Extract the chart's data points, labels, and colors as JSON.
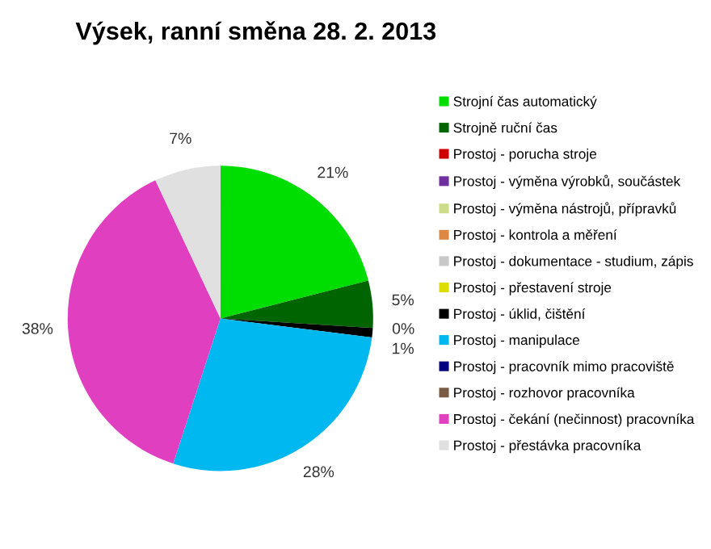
{
  "chart_data": {
    "type": "pie",
    "title": "Výsek, ranní směna 28. 2. 2013",
    "categories": [
      "Strojní čas automatický",
      "Strojně ruční čas",
      "Prostoj - porucha stroje",
      "Prostoj - výměna výrobků, součástek",
      "Prostoj - výměna nástrojů, přípravků",
      "Prostoj - kontrola a měření",
      "Prostoj - dokumentace - studium, zápis",
      "Prostoj - přestavení stroje",
      "Prostoj - úklid, čištění",
      "Prostoj - manipulace",
      "Prostoj - pracovník mimo pracoviště",
      "Prostoj - rozhovor pracovníka",
      "Prostoj - čekání (nečinnost) pracovníka",
      "Prostoj - přestávka pracovníka"
    ],
    "values": [
      21,
      5,
      0,
      0,
      0,
      0,
      0,
      0,
      1,
      28,
      0,
      0,
      38,
      7
    ],
    "value_labels": [
      "21%",
      "5%",
      "0%",
      null,
      null,
      null,
      null,
      null,
      "1%",
      "28%",
      null,
      null,
      "38%",
      "7%"
    ],
    "colors": [
      "#00dd00",
      "#006400",
      "#cc0000",
      "#7030a0",
      "#ccdd88",
      "#dd8844",
      "#c8c8c8",
      "#dddd00",
      "#000000",
      "#00b8f0",
      "#000080",
      "#7a5c44",
      "#e040c0",
      "#e0e0e0"
    ],
    "legend": "right"
  }
}
